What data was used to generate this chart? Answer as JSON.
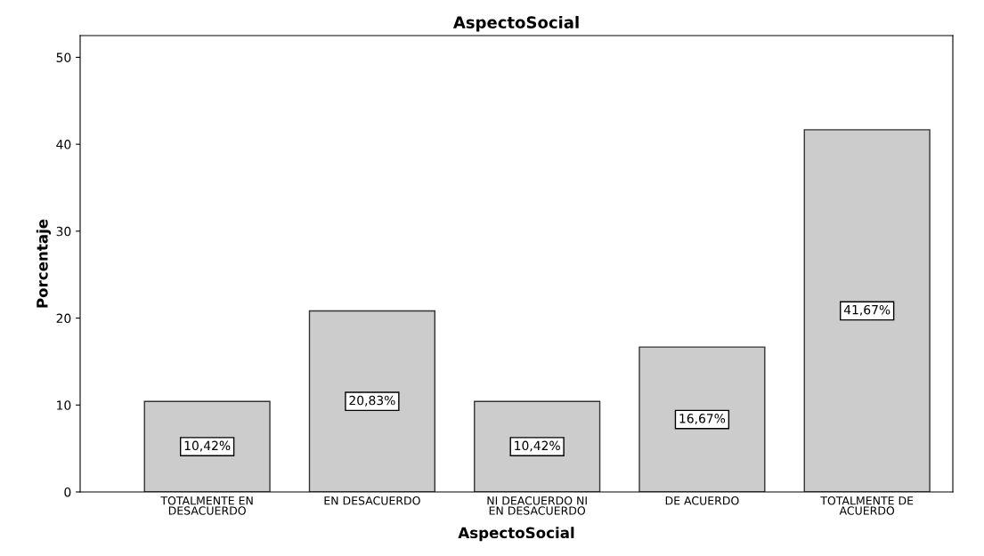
{
  "chart_data": {
    "type": "bar",
    "title": "AspectoSocial",
    "xlabel": "AspectoSocial",
    "ylabel": "Porcentaje",
    "categories": [
      "TOTALMENTE EN\nDESACUERDO",
      "EN DESACUERDO",
      "NI DEACUERDO NI\nEN DESACUERDO",
      "DE ACUERDO",
      "TOTALMENTE DE\nACUERDO"
    ],
    "values": [
      10.42,
      20.83,
      10.42,
      16.67,
      41.67
    ],
    "value_labels": [
      "10,42%",
      "20,83%",
      "10,42%",
      "16,67%",
      "41,67%"
    ],
    "color": "#cccccc",
    "ylim": [
      0,
      52.5
    ],
    "yticks": [
      0,
      10,
      20,
      30,
      40,
      50
    ],
    "grid": false,
    "legend": false
  }
}
